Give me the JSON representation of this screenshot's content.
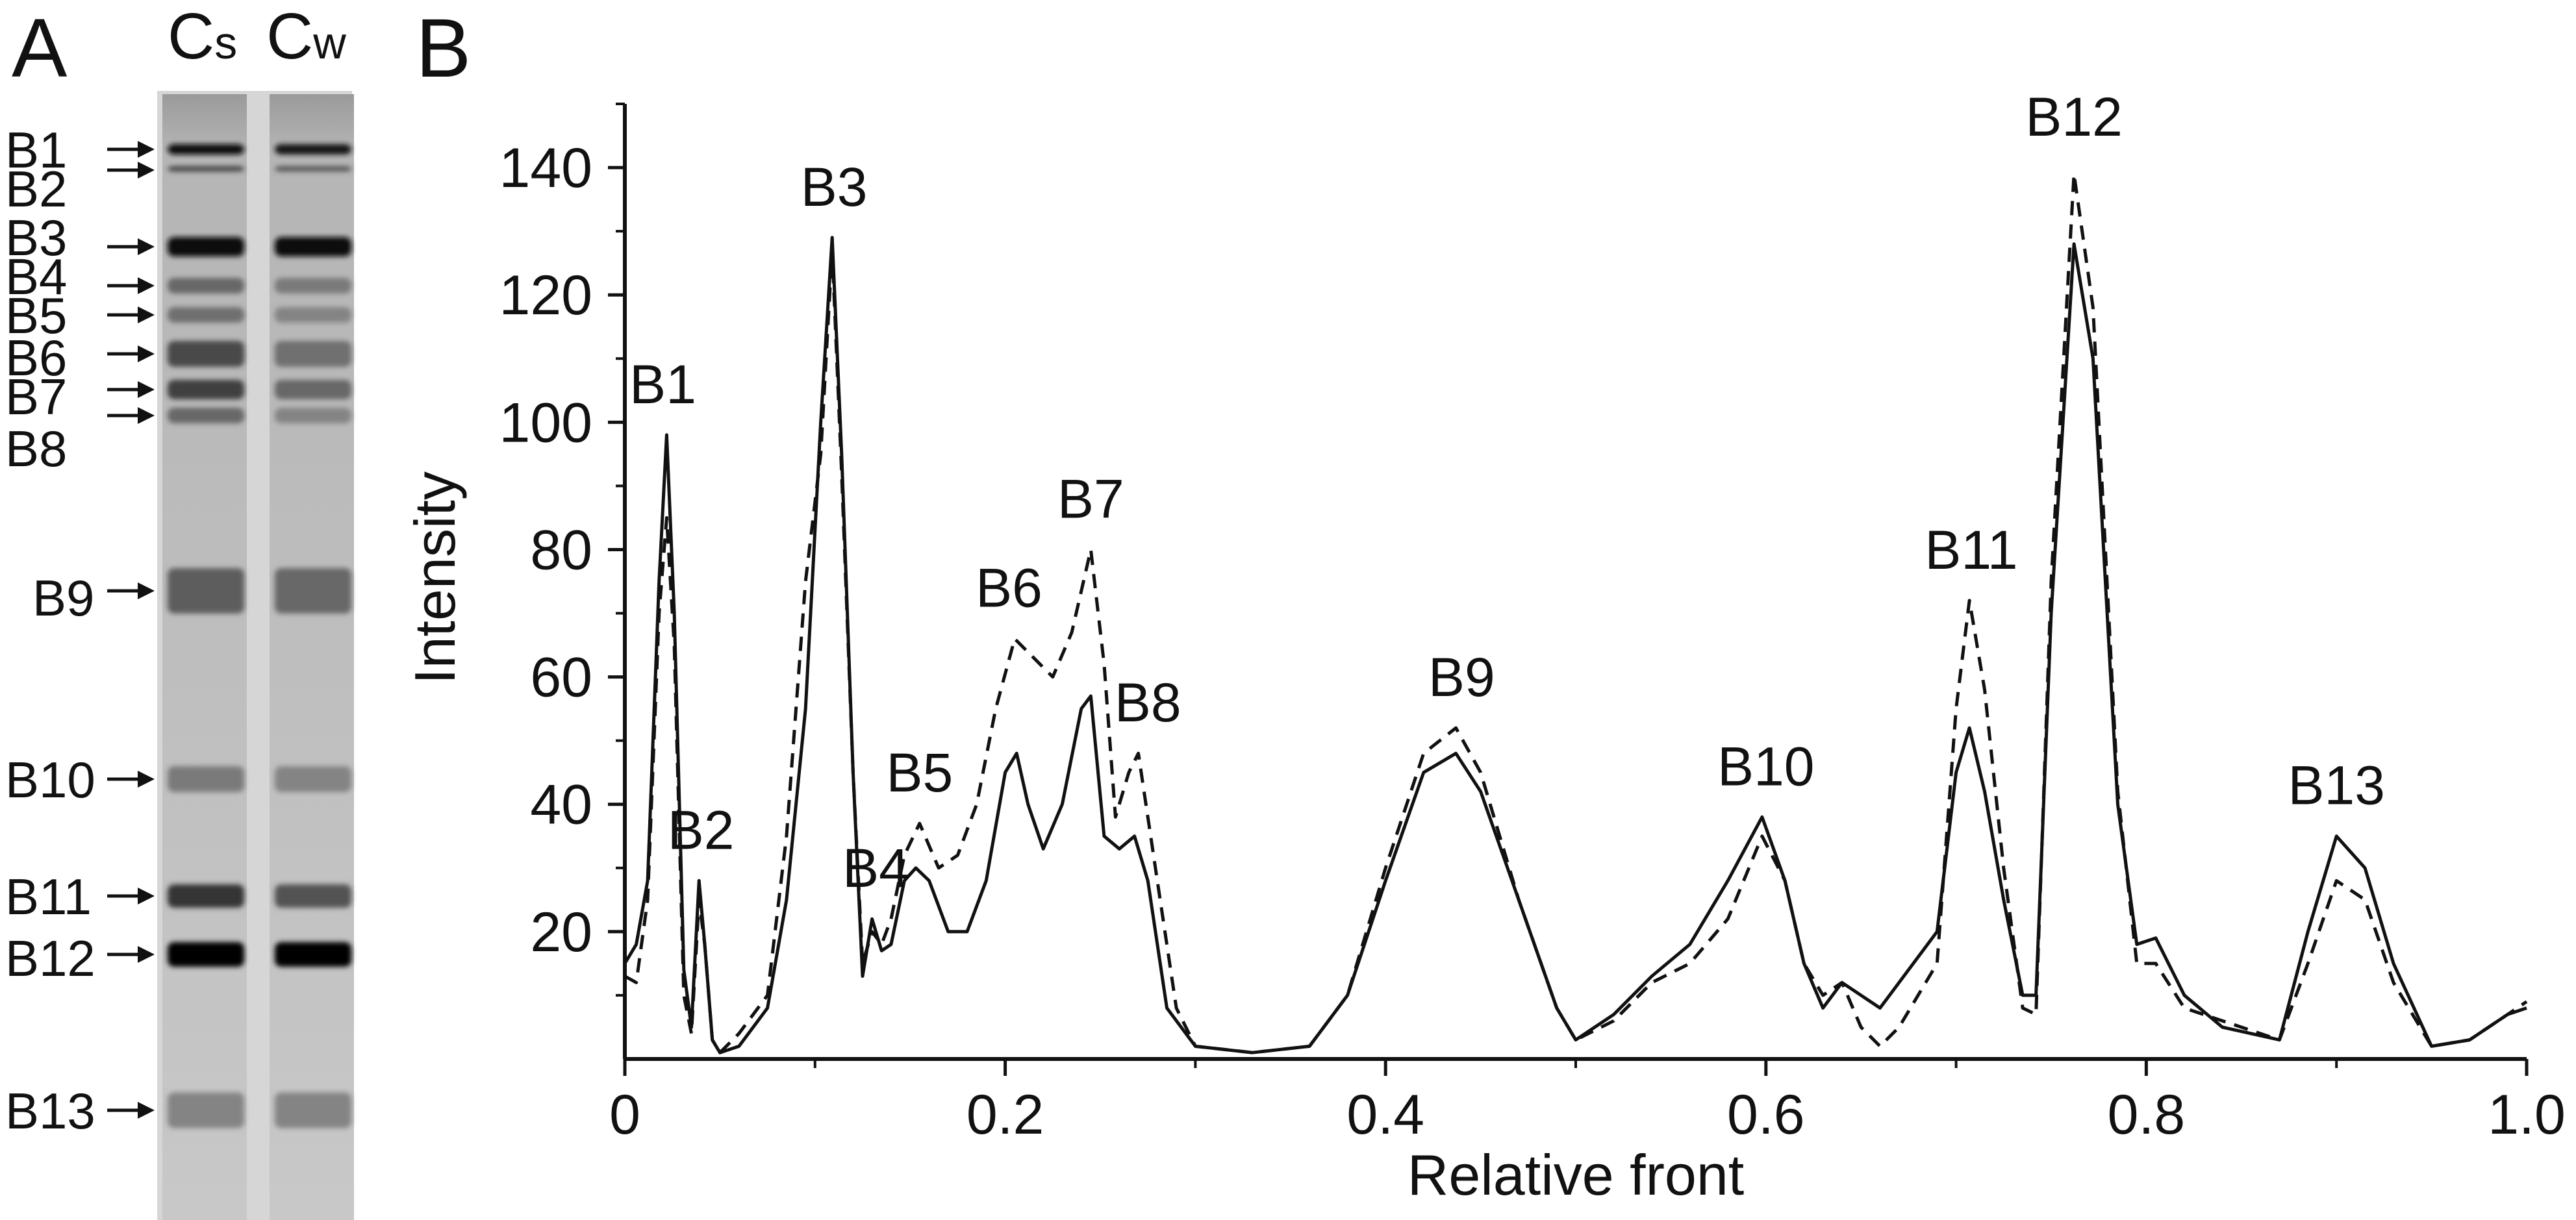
{
  "panel_a": {
    "label": "A",
    "lane_labels": [
      {
        "main": "C",
        "sub": "s"
      },
      {
        "main": "C",
        "sub": "w"
      }
    ],
    "bands": [
      "B1",
      "B2",
      "B3",
      "B4",
      "B5",
      "B6",
      "B7",
      "B8",
      "B9",
      "B10",
      "B11",
      "B12",
      "B13"
    ]
  },
  "panel_b": {
    "label": "B"
  },
  "chart_data": {
    "type": "line",
    "xlabel": "Relative front",
    "ylabel": "Intensity",
    "xlim": [
      0,
      1.0
    ],
    "ylim": [
      0,
      150
    ],
    "x_ticks": [
      "0",
      "0.2",
      "0.4",
      "0.6",
      "0.8",
      "1.0"
    ],
    "y_ticks": [
      "20",
      "40",
      "60",
      "80",
      "100",
      "120",
      "140"
    ],
    "series": [
      {
        "style": "solid",
        "points": [
          [
            0,
            15
          ],
          [
            0.006,
            18
          ],
          [
            0.012,
            28
          ],
          [
            0.018,
            75
          ],
          [
            0.022,
            98
          ],
          [
            0.026,
            70
          ],
          [
            0.031,
            14
          ],
          [
            0.035,
            5
          ],
          [
            0.039,
            28
          ],
          [
            0.042,
            18
          ],
          [
            0.046,
            3
          ],
          [
            0.05,
            1
          ],
          [
            0.06,
            2
          ],
          [
            0.075,
            8
          ],
          [
            0.085,
            25
          ],
          [
            0.095,
            55
          ],
          [
            0.103,
            100
          ],
          [
            0.109,
            129
          ],
          [
            0.114,
            95
          ],
          [
            0.12,
            45
          ],
          [
            0.125,
            13
          ],
          [
            0.13,
            22
          ],
          [
            0.135,
            17
          ],
          [
            0.14,
            18
          ],
          [
            0.147,
            28
          ],
          [
            0.153,
            30
          ],
          [
            0.16,
            28
          ],
          [
            0.17,
            20
          ],
          [
            0.18,
            20
          ],
          [
            0.19,
            28
          ],
          [
            0.2,
            45
          ],
          [
            0.206,
            48
          ],
          [
            0.212,
            40
          ],
          [
            0.22,
            33
          ],
          [
            0.23,
            40
          ],
          [
            0.24,
            55
          ],
          [
            0.245,
            57
          ],
          [
            0.252,
            35
          ],
          [
            0.26,
            33
          ],
          [
            0.268,
            35
          ],
          [
            0.275,
            28
          ],
          [
            0.285,
            8
          ],
          [
            0.3,
            2
          ],
          [
            0.33,
            1
          ],
          [
            0.36,
            2
          ],
          [
            0.38,
            10
          ],
          [
            0.4,
            28
          ],
          [
            0.42,
            45
          ],
          [
            0.437,
            48
          ],
          [
            0.45,
            42
          ],
          [
            0.47,
            25
          ],
          [
            0.49,
            8
          ],
          [
            0.5,
            3
          ],
          [
            0.52,
            7
          ],
          [
            0.54,
            13
          ],
          [
            0.56,
            18
          ],
          [
            0.58,
            28
          ],
          [
            0.598,
            38
          ],
          [
            0.61,
            28
          ],
          [
            0.62,
            15
          ],
          [
            0.63,
            8
          ],
          [
            0.64,
            12
          ],
          [
            0.65,
            10
          ],
          [
            0.66,
            8
          ],
          [
            0.67,
            12
          ],
          [
            0.69,
            20
          ],
          [
            0.7,
            45
          ],
          [
            0.707,
            52
          ],
          [
            0.715,
            42
          ],
          [
            0.725,
            25
          ],
          [
            0.735,
            10
          ],
          [
            0.742,
            10
          ],
          [
            0.75,
            70
          ],
          [
            0.762,
            128
          ],
          [
            0.772,
            110
          ],
          [
            0.785,
            40
          ],
          [
            0.795,
            18
          ],
          [
            0.805,
            19
          ],
          [
            0.82,
            10
          ],
          [
            0.84,
            5
          ],
          [
            0.87,
            3
          ],
          [
            0.885,
            20
          ],
          [
            0.9,
            35
          ],
          [
            0.915,
            30
          ],
          [
            0.93,
            15
          ],
          [
            0.95,
            2
          ],
          [
            0.97,
            3
          ],
          [
            0.99,
            7
          ],
          [
            1.0,
            8
          ]
        ]
      },
      {
        "style": "dashed",
        "points": [
          [
            0,
            13
          ],
          [
            0.006,
            12
          ],
          [
            0.012,
            25
          ],
          [
            0.018,
            70
          ],
          [
            0.022,
            85
          ],
          [
            0.026,
            65
          ],
          [
            0.031,
            10
          ],
          [
            0.035,
            4
          ],
          [
            0.039,
            25
          ],
          [
            0.042,
            18
          ],
          [
            0.046,
            3
          ],
          [
            0.05,
            1
          ],
          [
            0.06,
            4
          ],
          [
            0.075,
            10
          ],
          [
            0.085,
            35
          ],
          [
            0.095,
            75
          ],
          [
            0.103,
            95
          ],
          [
            0.109,
            127
          ],
          [
            0.114,
            92
          ],
          [
            0.12,
            45
          ],
          [
            0.125,
            15
          ],
          [
            0.13,
            20
          ],
          [
            0.135,
            18
          ],
          [
            0.14,
            22
          ],
          [
            0.147,
            32
          ],
          [
            0.155,
            37
          ],
          [
            0.165,
            30
          ],
          [
            0.175,
            32
          ],
          [
            0.185,
            40
          ],
          [
            0.195,
            55
          ],
          [
            0.205,
            66
          ],
          [
            0.215,
            63
          ],
          [
            0.225,
            60
          ],
          [
            0.235,
            67
          ],
          [
            0.245,
            80
          ],
          [
            0.252,
            62
          ],
          [
            0.258,
            38
          ],
          [
            0.265,
            45
          ],
          [
            0.27,
            48
          ],
          [
            0.28,
            28
          ],
          [
            0.29,
            8
          ],
          [
            0.3,
            2
          ],
          [
            0.33,
            1
          ],
          [
            0.36,
            2
          ],
          [
            0.38,
            10
          ],
          [
            0.4,
            30
          ],
          [
            0.42,
            48
          ],
          [
            0.437,
            52
          ],
          [
            0.45,
            45
          ],
          [
            0.47,
            25
          ],
          [
            0.49,
            8
          ],
          [
            0.5,
            3
          ],
          [
            0.52,
            6
          ],
          [
            0.54,
            12
          ],
          [
            0.56,
            15
          ],
          [
            0.58,
            22
          ],
          [
            0.598,
            35
          ],
          [
            0.61,
            28
          ],
          [
            0.62,
            15
          ],
          [
            0.63,
            10
          ],
          [
            0.64,
            12
          ],
          [
            0.65,
            5
          ],
          [
            0.66,
            2
          ],
          [
            0.67,
            5
          ],
          [
            0.69,
            15
          ],
          [
            0.7,
            55
          ],
          [
            0.707,
            72
          ],
          [
            0.715,
            58
          ],
          [
            0.725,
            30
          ],
          [
            0.735,
            8
          ],
          [
            0.742,
            7
          ],
          [
            0.75,
            75
          ],
          [
            0.762,
            139
          ],
          [
            0.772,
            118
          ],
          [
            0.785,
            42
          ],
          [
            0.795,
            15
          ],
          [
            0.805,
            15
          ],
          [
            0.82,
            8
          ],
          [
            0.84,
            6
          ],
          [
            0.87,
            3
          ],
          [
            0.885,
            15
          ],
          [
            0.9,
            28
          ],
          [
            0.915,
            25
          ],
          [
            0.93,
            12
          ],
          [
            0.95,
            2
          ],
          [
            0.97,
            3
          ],
          [
            0.99,
            7
          ],
          [
            1.0,
            9
          ]
        ]
      }
    ],
    "annotations": [
      {
        "text": "B1",
        "x": 0.02,
        "y": 103
      },
      {
        "text": "B2",
        "x": 0.04,
        "y": 33
      },
      {
        "text": "B3",
        "x": 0.11,
        "y": 134
      },
      {
        "text": "B4",
        "x": 0.132,
        "y": 27
      },
      {
        "text": "B5",
        "x": 0.155,
        "y": 42
      },
      {
        "text": "B6",
        "x": 0.202,
        "y": 71
      },
      {
        "text": "B7",
        "x": 0.245,
        "y": 85
      },
      {
        "text": "B8",
        "x": 0.275,
        "y": 53
      },
      {
        "text": "B9",
        "x": 0.44,
        "y": 57
      },
      {
        "text": "B10",
        "x": 0.6,
        "y": 43
      },
      {
        "text": "B11",
        "x": 0.708,
        "y": 77
      },
      {
        "text": "B12",
        "x": 0.762,
        "y": 145
      },
      {
        "text": "B13",
        "x": 0.9,
        "y": 40
      }
    ],
    "grid": false,
    "legend": "none"
  }
}
